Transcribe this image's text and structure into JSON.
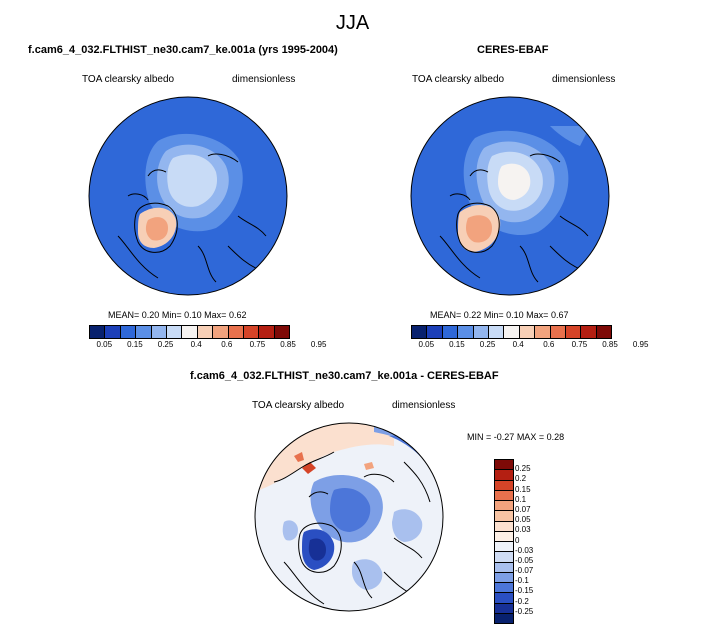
{
  "main_title": "JJA",
  "chart_data": [
    {
      "type": "heatmap",
      "title": "f.cam6_4_032.FLTHIST_ne30.cam7_ke.001a (yrs 1995-2004)",
      "variable": "TOA clearsky albedo",
      "units": "dimensionless",
      "projection": "north polar stereographic",
      "stats": {
        "mean_label": "MEAN=",
        "mean": "0.20",
        "min_label": "Min=",
        "min": "0.10",
        "max_label": "Max=",
        "max": "0.62"
      },
      "colorbar": {
        "levels": [
          "0.05",
          "0.15",
          "0.25",
          "0.4",
          "0.6",
          "0.75",
          "0.85",
          "0.95"
        ],
        "colors": [
          "#08216e",
          "#1c3fb8",
          "#2f68d8",
          "#5b8fe6",
          "#93b6ef",
          "#c8dbf6",
          "#f6f3f1",
          "#f7cfb6",
          "#f2a37e",
          "#e8714d",
          "#d54428",
          "#b41f12",
          "#7e0a07"
        ]
      }
    },
    {
      "type": "heatmap",
      "title": "CERES-EBAF",
      "variable": "TOA clearsky albedo",
      "units": "dimensionless",
      "projection": "north polar stereographic",
      "stats": {
        "mean_label": "MEAN=",
        "mean": "0.22",
        "min_label": "Min=",
        "min": "0.10",
        "max_label": "Max=",
        "max": "0.67"
      },
      "colorbar": {
        "levels": [
          "0.05",
          "0.15",
          "0.25",
          "0.4",
          "0.6",
          "0.75",
          "0.85",
          "0.95"
        ],
        "colors": [
          "#08216e",
          "#1c3fb8",
          "#2f68d8",
          "#5b8fe6",
          "#93b6ef",
          "#c8dbf6",
          "#f6f3f1",
          "#f7cfb6",
          "#f2a37e",
          "#e8714d",
          "#d54428",
          "#b41f12",
          "#7e0a07"
        ]
      }
    },
    {
      "type": "heatmap",
      "title": "f.cam6_4_032.FLTHIST_ne30.cam7_ke.001a - CERES-EBAF",
      "variable": "TOA clearsky albedo",
      "units": "dimensionless",
      "projection": "north polar stereographic",
      "stats": {
        "min_label": "MIN =",
        "min": "-0.27",
        "max_label": "MAX =",
        "max": "0.28"
      },
      "colorbar": {
        "levels": [
          "0.25",
          "0.2",
          "0.15",
          "0.1",
          "0.07",
          "0.05",
          "0.03",
          "0",
          "-0.03",
          "-0.05",
          "-0.07",
          "-0.1",
          "-0.15",
          "-0.2",
          "-0.25"
        ],
        "colors": [
          "#7e0a07",
          "#b41f12",
          "#d54428",
          "#e8714d",
          "#f2a37e",
          "#f7c4a4",
          "#fbe0cf",
          "#fdf0e6",
          "#eef2f9",
          "#cfdcf4",
          "#a9c0ee",
          "#7d9fe6",
          "#4c76d9",
          "#2a4fc2",
          "#173096",
          "#08216e"
        ]
      }
    }
  ]
}
